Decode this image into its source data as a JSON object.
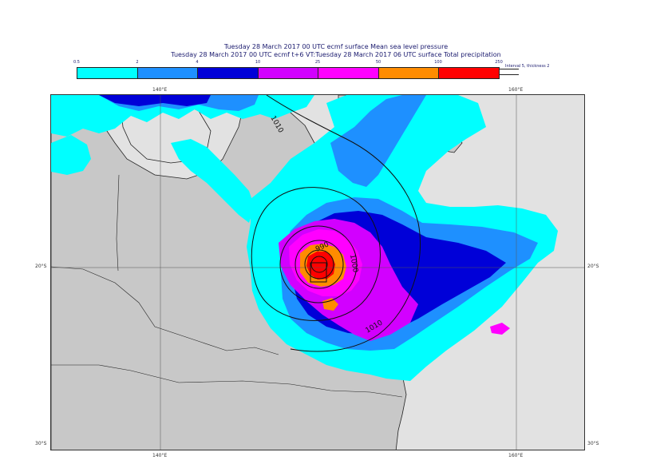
{
  "title": {
    "line1": "Tuesday 28 March 2017 00 UTC ecmf surface  Mean sea level pressure",
    "line2": "Tuesday 28 March 2017 00 UTC ecmf t+6 VT:Tuesday 28 March 2017 06 UTC surface  Total precipitation"
  },
  "legend": {
    "ticks": [
      "0.5",
      "2",
      "4",
      "10",
      "25",
      "50",
      "100",
      "250"
    ],
    "colors": [
      "#00ffff",
      "#1e90ff",
      "#0000d8",
      "#d200ff",
      "#ff00ff",
      "#ff8c00",
      "#ff0000"
    ],
    "contour_note": "Interval 5, thickness 2"
  },
  "map": {
    "lon_labels": [
      "140°E",
      "160°E"
    ],
    "lat_labels": [
      "20°S",
      "30°S"
    ],
    "isobar_labels": [
      "1010",
      "990",
      "1000",
      "1010"
    ],
    "land_color": "#c8c8c8",
    "sea_color": "#e2e2e2"
  }
}
